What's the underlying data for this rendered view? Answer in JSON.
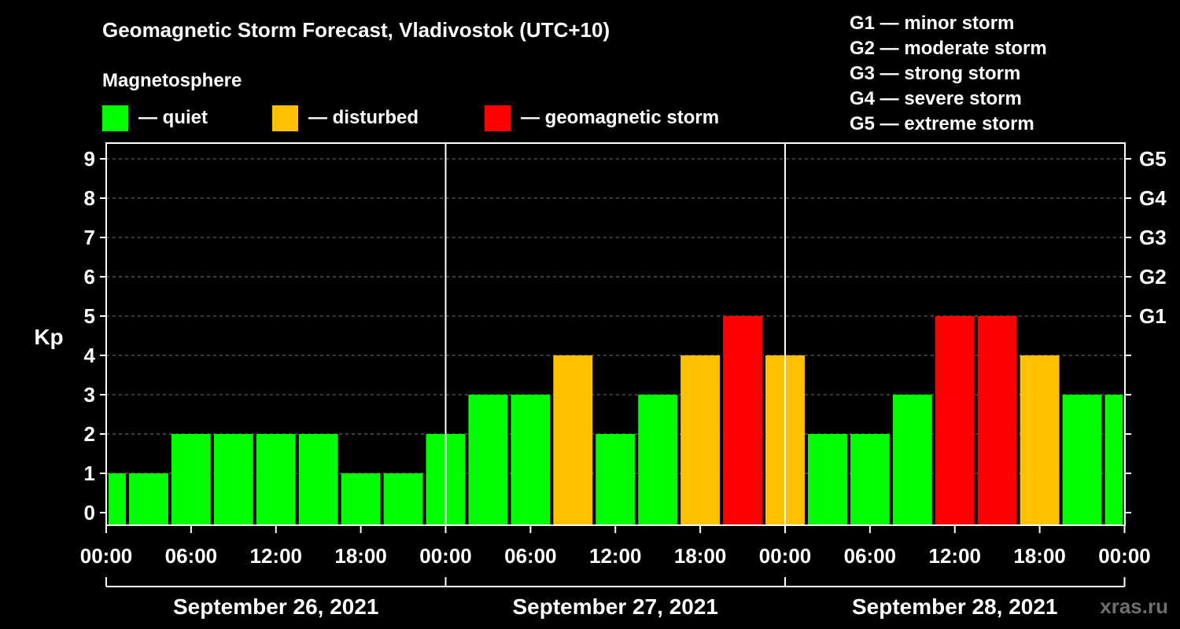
{
  "title": "Geomagnetic Storm Forecast, Vladivostok (UTC+10)",
  "legend": {
    "heading": "Magnetosphere",
    "items": [
      {
        "label": "— quiet",
        "color": "#00ff00"
      },
      {
        "label": "— disturbed",
        "color": "#ffc000"
      },
      {
        "label": "— geomagnetic storm",
        "color": "#ff0000"
      }
    ]
  },
  "g_scale": [
    "G1 — minor storm",
    "G2 — moderate storm",
    "G3 — strong storm",
    "G4 — severe storm",
    "G5 — extreme storm"
  ],
  "watermark": "xras.ru",
  "chart_data": {
    "type": "bar",
    "ylabel": "Kp",
    "ylim": [
      0,
      9
    ],
    "yticks": [
      "0",
      "1",
      "2",
      "3",
      "4",
      "5",
      "6",
      "7",
      "8",
      "9"
    ],
    "right_ticks": [
      {
        "kp": 5,
        "label": "G1"
      },
      {
        "kp": 6,
        "label": "G2"
      },
      {
        "kp": 7,
        "label": "G3"
      },
      {
        "kp": 8,
        "label": "G4"
      },
      {
        "kp": 9,
        "label": "G5"
      }
    ],
    "xticks": [
      "00:00",
      "06:00",
      "12:00",
      "18:00",
      "00:00",
      "06:00",
      "12:00",
      "18:00",
      "00:00",
      "06:00",
      "12:00",
      "18:00",
      "00:00"
    ],
    "days": [
      "September 26, 2021",
      "September 27, 2021",
      "September 28, 2021"
    ],
    "grid": true,
    "colors": {
      "quiet": "#00ff00",
      "disturbed": "#ffc000",
      "storm": "#ff0000"
    },
    "bars": [
      {
        "day": 0,
        "start_hour": 0,
        "end_hour": 1.5,
        "kp": 1,
        "level": "quiet"
      },
      {
        "day": 0,
        "start_hour": 1.5,
        "end_hour": 4.5,
        "kp": 1,
        "level": "quiet"
      },
      {
        "day": 0,
        "start_hour": 4.5,
        "end_hour": 7.5,
        "kp": 2,
        "level": "quiet"
      },
      {
        "day": 0,
        "start_hour": 7.5,
        "end_hour": 10.5,
        "kp": 2,
        "level": "quiet"
      },
      {
        "day": 0,
        "start_hour": 10.5,
        "end_hour": 13.5,
        "kp": 2,
        "level": "quiet"
      },
      {
        "day": 0,
        "start_hour": 13.5,
        "end_hour": 16.5,
        "kp": 2,
        "level": "quiet"
      },
      {
        "day": 0,
        "start_hour": 16.5,
        "end_hour": 19.5,
        "kp": 1,
        "level": "quiet"
      },
      {
        "day": 0,
        "start_hour": 19.5,
        "end_hour": 22.5,
        "kp": 1,
        "level": "quiet"
      },
      {
        "day": 0,
        "start_hour": 22.5,
        "end_hour": 25.5,
        "kp": 2,
        "level": "quiet"
      },
      {
        "day": 1,
        "start_hour": 1.5,
        "end_hour": 4.5,
        "kp": 3,
        "level": "quiet"
      },
      {
        "day": 1,
        "start_hour": 4.5,
        "end_hour": 7.5,
        "kp": 3,
        "level": "quiet"
      },
      {
        "day": 1,
        "start_hour": 7.5,
        "end_hour": 10.5,
        "kp": 4,
        "level": "disturbed"
      },
      {
        "day": 1,
        "start_hour": 10.5,
        "end_hour": 13.5,
        "kp": 2,
        "level": "quiet"
      },
      {
        "day": 1,
        "start_hour": 13.5,
        "end_hour": 16.5,
        "kp": 3,
        "level": "quiet"
      },
      {
        "day": 1,
        "start_hour": 16.5,
        "end_hour": 19.5,
        "kp": 4,
        "level": "disturbed"
      },
      {
        "day": 1,
        "start_hour": 19.5,
        "end_hour": 22.5,
        "kp": 5,
        "level": "storm"
      },
      {
        "day": 1,
        "start_hour": 22.5,
        "end_hour": 25.5,
        "kp": 4,
        "level": "disturbed"
      },
      {
        "day": 2,
        "start_hour": 1.5,
        "end_hour": 4.5,
        "kp": 2,
        "level": "quiet"
      },
      {
        "day": 2,
        "start_hour": 4.5,
        "end_hour": 7.5,
        "kp": 2,
        "level": "quiet"
      },
      {
        "day": 2,
        "start_hour": 7.5,
        "end_hour": 10.5,
        "kp": 3,
        "level": "quiet"
      },
      {
        "day": 2,
        "start_hour": 10.5,
        "end_hour": 13.5,
        "kp": 5,
        "level": "storm"
      },
      {
        "day": 2,
        "start_hour": 13.5,
        "end_hour": 16.5,
        "kp": 5,
        "level": "storm"
      },
      {
        "day": 2,
        "start_hour": 16.5,
        "end_hour": 19.5,
        "kp": 4,
        "level": "disturbed"
      },
      {
        "day": 2,
        "start_hour": 19.5,
        "end_hour": 22.5,
        "kp": 3,
        "level": "quiet"
      },
      {
        "day": 2,
        "start_hour": 22.5,
        "end_hour": 24,
        "kp": 3,
        "level": "quiet"
      }
    ]
  }
}
